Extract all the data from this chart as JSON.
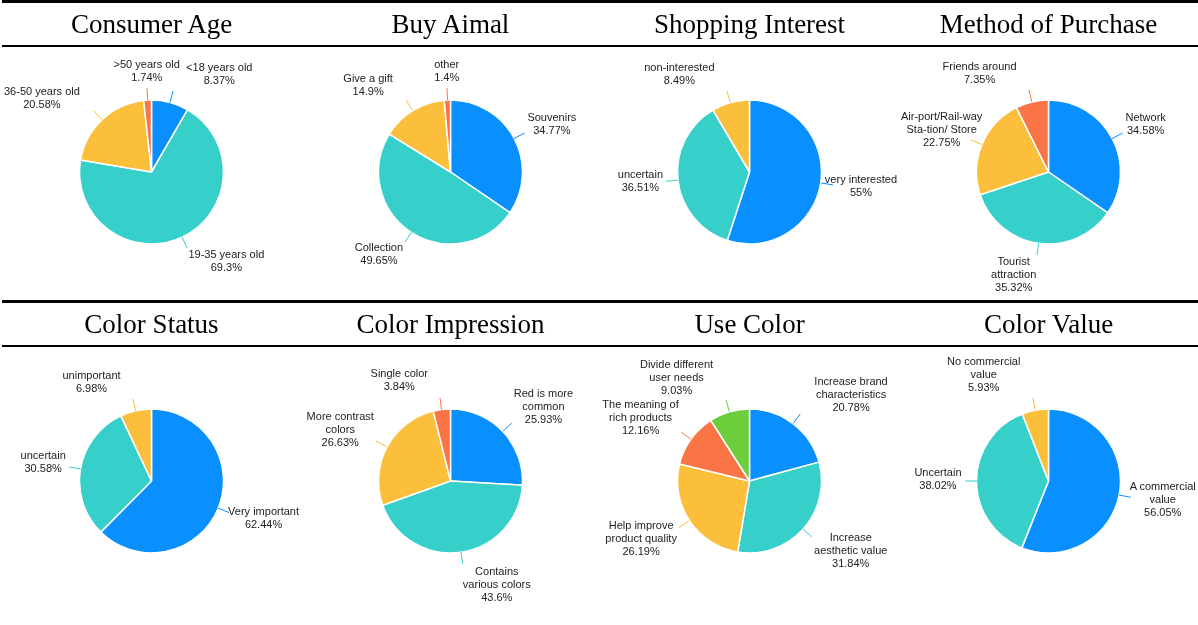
{
  "chart_data": [
    {
      "type": "pie",
      "title": "Consumer Age",
      "categories": [
        "<18 years old",
        "19-35 years old",
        "36-50 years old",
        ">50 years old"
      ],
      "values": [
        8.37,
        69.3,
        20.58,
        1.74
      ],
      "value_labels": [
        "8.37%",
        "69.3%",
        "20.58%",
        "1.74%"
      ],
      "colors": [
        "#0a8fff",
        "#36cfc9",
        "#fbbf3c",
        "#f97545"
      ]
    },
    {
      "type": "pie",
      "title": "Buy Aimal",
      "categories": [
        "Souvenirs",
        "Collection",
        "Give a gift",
        "other"
      ],
      "values": [
        34.77,
        49.65,
        14.9,
        1.4
      ],
      "value_labels": [
        "34.77%",
        "49.65%",
        "14.9%",
        "1.4%"
      ],
      "colors": [
        "#0a8fff",
        "#36cfc9",
        "#fbbf3c",
        "#f97545"
      ]
    },
    {
      "type": "pie",
      "title": "Shopping Interest",
      "categories": [
        "very interested",
        "uncertain",
        "non-interested"
      ],
      "values": [
        55,
        36.51,
        8.49
      ],
      "value_labels": [
        "55%",
        "36.51%",
        "8.49%"
      ],
      "colors": [
        "#0a8fff",
        "#36cfc9",
        "#fbbf3c"
      ]
    },
    {
      "type": "pie",
      "title": "Method of Purchase",
      "categories": [
        "Network",
        "Tourist attraction",
        "Air-port/Rail-way Sta-tion/ Store",
        "Friends around"
      ],
      "values": [
        34.58,
        35.32,
        22.75,
        7.35
      ],
      "value_labels": [
        "34.58%",
        "35.32%",
        "22.75%",
        "7.35%"
      ],
      "colors": [
        "#0a8fff",
        "#36cfc9",
        "#fbbf3c",
        "#f97545"
      ]
    },
    {
      "type": "pie",
      "title": "Color Status",
      "categories": [
        "Very important",
        "uncertain",
        "unimportant"
      ],
      "values": [
        62.44,
        30.58,
        6.98
      ],
      "value_labels": [
        "62.44%",
        "30.58%",
        "6.98%"
      ],
      "colors": [
        "#0a8fff",
        "#36cfc9",
        "#fbbf3c"
      ]
    },
    {
      "type": "pie",
      "title": "Color Impression",
      "categories": [
        "Red is more common",
        "Contains various colors",
        "More contrast colors",
        "Single color"
      ],
      "values": [
        25.93,
        43.6,
        26.63,
        3.84
      ],
      "value_labels": [
        "25.93%",
        "43.6%",
        "26.63%",
        "3.84%"
      ],
      "colors": [
        "#0a8fff",
        "#36cfc9",
        "#fbbf3c",
        "#f97545"
      ]
    },
    {
      "type": "pie",
      "title": "Use Color",
      "categories": [
        "Increase brand characteristics",
        "Increase aesthetic value",
        "Help improve product quality",
        "The meaning of rich products",
        "Divide different user needs"
      ],
      "values": [
        20.78,
        31.84,
        26.19,
        12.16,
        9.03
      ],
      "value_labels": [
        "20.78%",
        "31.84%",
        "26.19%",
        "12.16%",
        "9.03%"
      ],
      "colors": [
        "#0a8fff",
        "#36cfc9",
        "#fbbf3c",
        "#f97545",
        "#6cce3c"
      ]
    },
    {
      "type": "pie",
      "title": "Color Value",
      "categories": [
        "A commercial value",
        "Uncertain",
        "No commercial value"
      ],
      "values": [
        56.05,
        38.02,
        5.93
      ],
      "value_labels": [
        "56.05%",
        "38.02%",
        "5.93%"
      ],
      "colors": [
        "#0a8fff",
        "#36cfc9",
        "#fbbf3c"
      ]
    }
  ]
}
